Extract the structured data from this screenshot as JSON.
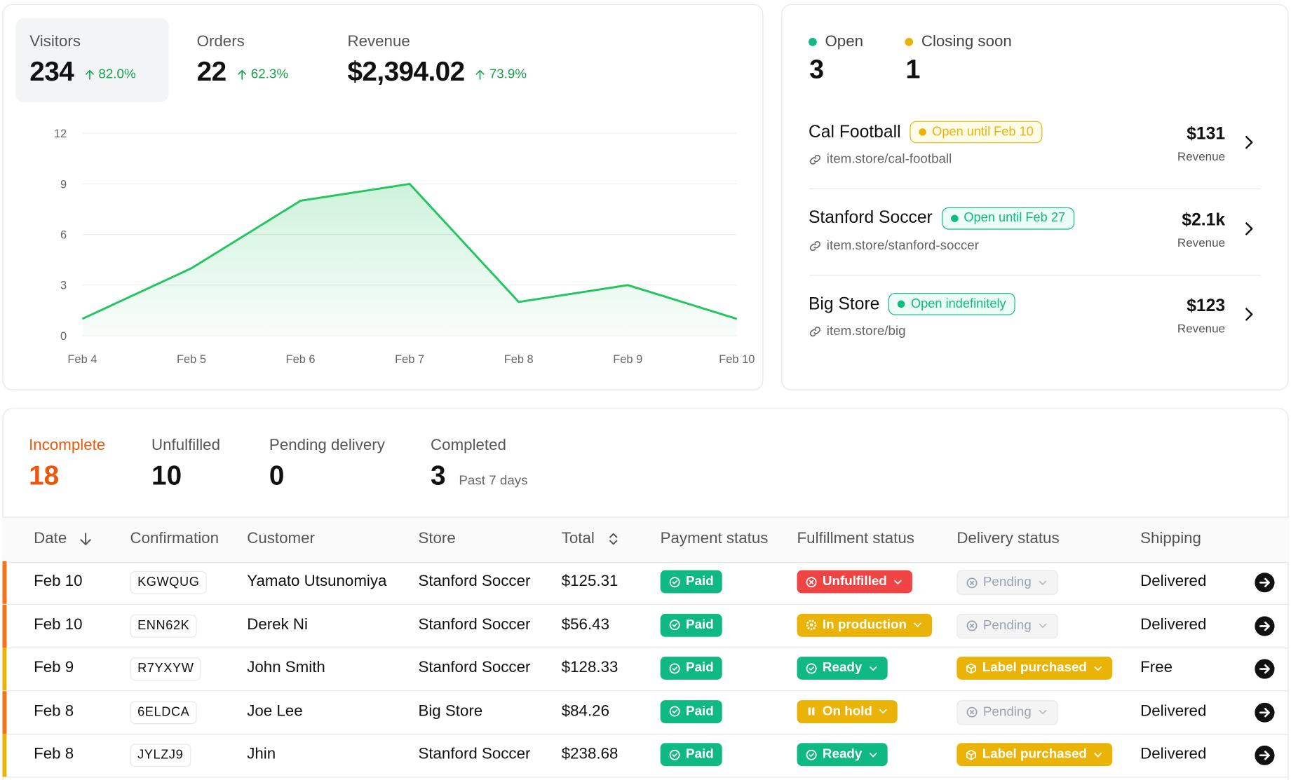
{
  "stats": [
    {
      "label": "Visitors",
      "value": "234",
      "change": "82.0%"
    },
    {
      "label": "Orders",
      "value": "22",
      "change": "62.3%"
    },
    {
      "label": "Revenue",
      "value": "$2,394.02",
      "change": "73.9%"
    }
  ],
  "chart": {
    "type": "line",
    "categories": [
      "Feb 4",
      "Feb 5",
      "Feb 6",
      "Feb 7",
      "Feb 8",
      "Feb 9",
      "Feb 10"
    ],
    "values": [
      1,
      4,
      8,
      9,
      2,
      3,
      1
    ],
    "ylim": [
      0,
      12
    ],
    "yticks": [
      0,
      3,
      6,
      9,
      12
    ],
    "color": "#22c55e",
    "grid": true
  },
  "store_summary": [
    {
      "label": "Open",
      "count": "3",
      "color": "#10b981"
    },
    {
      "label": "Closing soon",
      "count": "1",
      "color": "#eab308"
    }
  ],
  "stores": [
    {
      "name": "Cal Football",
      "badge": "Open until Feb 10",
      "tone": "yellow",
      "url": "item.store/cal-football",
      "revenue": "$131",
      "revenue_label": "Revenue"
    },
    {
      "name": "Stanford Soccer",
      "badge": "Open until Feb 27",
      "tone": "green",
      "url": "item.store/stanford-soccer",
      "revenue": "$2.1k",
      "revenue_label": "Revenue"
    },
    {
      "name": "Big Store",
      "badge": "Open indefinitely",
      "tone": "green",
      "url": "item.store/big",
      "revenue": "$123",
      "revenue_label": "Revenue"
    }
  ],
  "order_tabs": [
    {
      "label": "Incomplete",
      "count": "18",
      "active": true
    },
    {
      "label": "Unfulfilled",
      "count": "10"
    },
    {
      "label": "Pending delivery",
      "count": "0"
    },
    {
      "label": "Completed",
      "count": "3",
      "note": "Past 7 days"
    }
  ],
  "table": {
    "columns": [
      "Date",
      "Confirmation",
      "Customer",
      "Store",
      "Total",
      "Payment status",
      "Fulfillment status",
      "Delivery status",
      "Shipping"
    ],
    "rows": [
      {
        "accent": "#f97316",
        "date": "Feb 10",
        "confirmation": "KGWQUG",
        "customer": "Yamato Utsunomiya",
        "store": "Stanford Soccer",
        "total": "$125.31",
        "payment": {
          "label": "Paid",
          "tone": "green"
        },
        "fulfillment": {
          "label": "Unfulfilled",
          "tone": "red"
        },
        "delivery": {
          "label": "Pending",
          "tone": "gray"
        },
        "shipping": "Delivered"
      },
      {
        "accent": "#f97316",
        "date": "Feb 10",
        "confirmation": "ENN62K",
        "customer": "Derek Ni",
        "store": "Stanford Soccer",
        "total": "$56.43",
        "payment": {
          "label": "Paid",
          "tone": "green"
        },
        "fulfillment": {
          "label": "In production",
          "tone": "yellow"
        },
        "delivery": {
          "label": "Pending",
          "tone": "gray"
        },
        "shipping": "Delivered"
      },
      {
        "accent": "#eab308",
        "date": "Feb 9",
        "confirmation": "R7YXYW",
        "customer": "John Smith",
        "store": "Stanford Soccer",
        "total": "$128.33",
        "payment": {
          "label": "Paid",
          "tone": "green"
        },
        "fulfillment": {
          "label": "Ready",
          "tone": "green"
        },
        "delivery": {
          "label": "Label purchased",
          "tone": "yellow"
        },
        "shipping": "Free"
      },
      {
        "accent": "#f97316",
        "date": "Feb 8",
        "confirmation": "6ELDCA",
        "customer": "Joe Lee",
        "store": "Big Store",
        "total": "$84.26",
        "payment": {
          "label": "Paid",
          "tone": "green"
        },
        "fulfillment": {
          "label": "On hold",
          "tone": "yellow"
        },
        "delivery": {
          "label": "Pending",
          "tone": "gray"
        },
        "shipping": "Delivered"
      },
      {
        "accent": "#eab308",
        "date": "Feb 8",
        "confirmation": "JYLZJ9",
        "customer": "Jhin",
        "store": "Stanford Soccer",
        "total": "$238.68",
        "payment": {
          "label": "Paid",
          "tone": "green"
        },
        "fulfillment": {
          "label": "Ready",
          "tone": "green"
        },
        "delivery": {
          "label": "Label purchased",
          "tone": "yellow"
        },
        "shipping": "Delivered"
      }
    ]
  }
}
